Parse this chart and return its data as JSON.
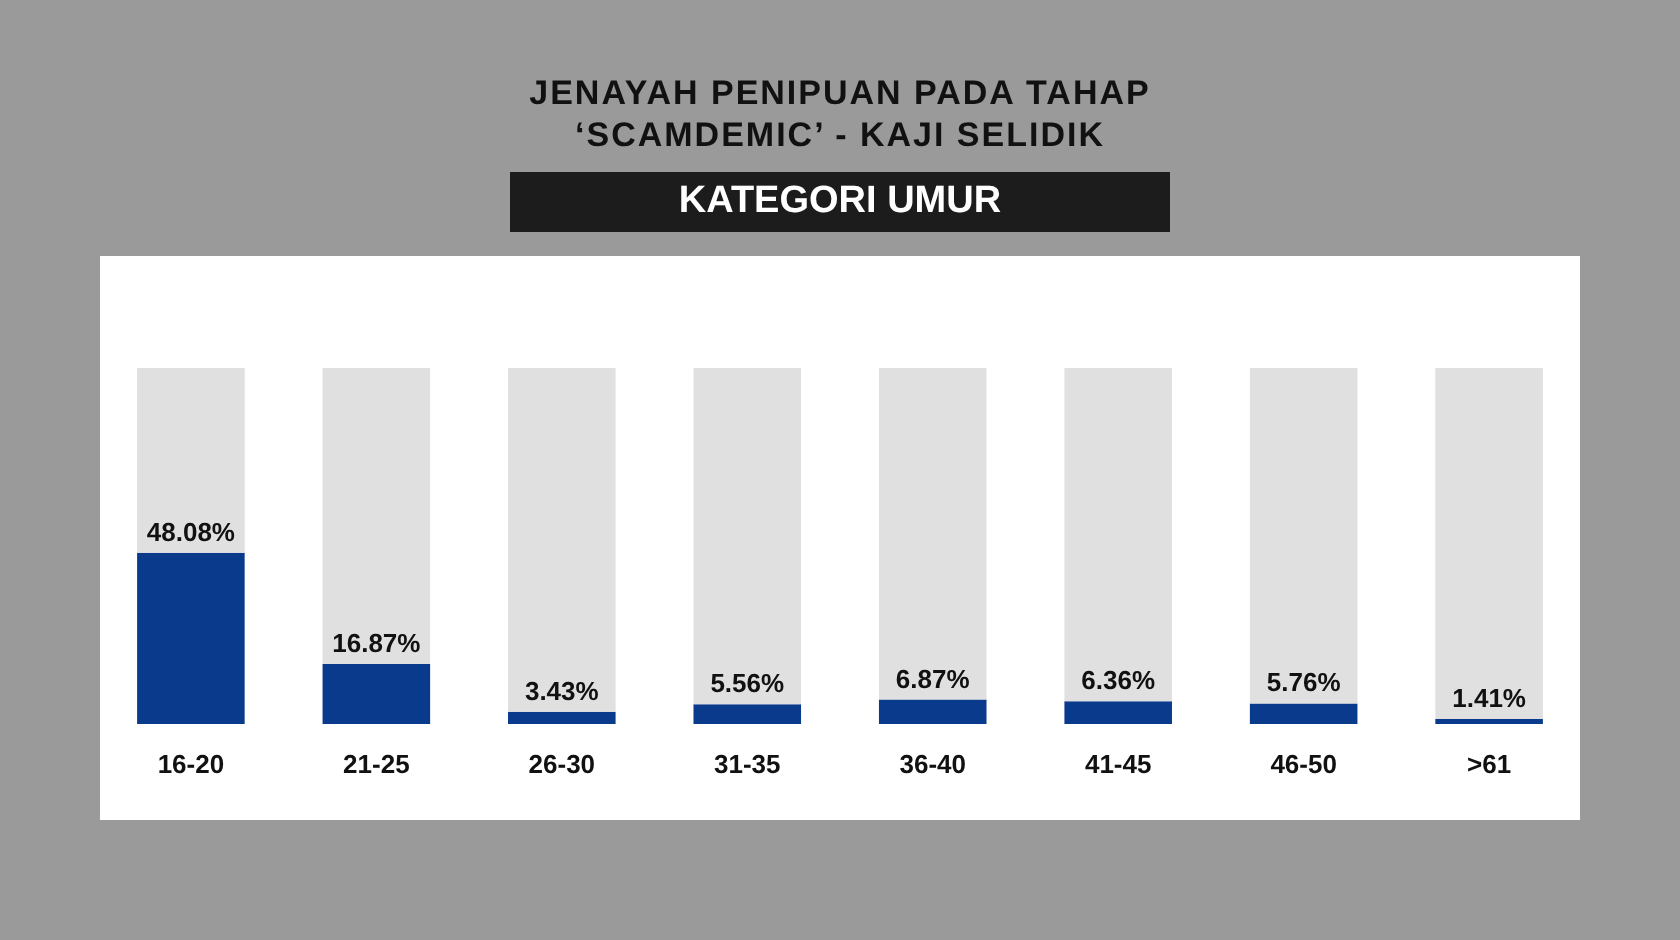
{
  "chart_data": {
    "type": "bar",
    "title": "JENAYAH PENIPUAN PADA TAHAP\n‘SCAMDEMIC’ - KAJI SELIDIK",
    "subtitle": "KATEGORI UMUR",
    "categories": [
      "16-20",
      "21-25",
      "26-30",
      "31-35",
      "36-40",
      "41-45",
      "46-50",
      ">61"
    ],
    "series": [
      {
        "color": "#0a3a8c",
        "values": [
          48.08,
          16.87,
          3.43,
          5.56,
          6.87,
          6.36,
          5.76,
          1.41
        ],
        "value_labels": [
          "48.08%",
          "16.87%",
          "3.43%",
          "5.56%",
          "6.87%",
          "6.36%",
          "5.76%",
          "1.41%"
        ]
      },
      {
        "color": "#e0e0e0",
        "values": [
          51.92,
          83.13,
          96.57,
          94.44,
          93.13,
          93.64,
          94.24,
          98.59
        ]
      }
    ],
    "stacked": true,
    "ylim": [
      0,
      100
    ],
    "tick_labels": "x"
  }
}
